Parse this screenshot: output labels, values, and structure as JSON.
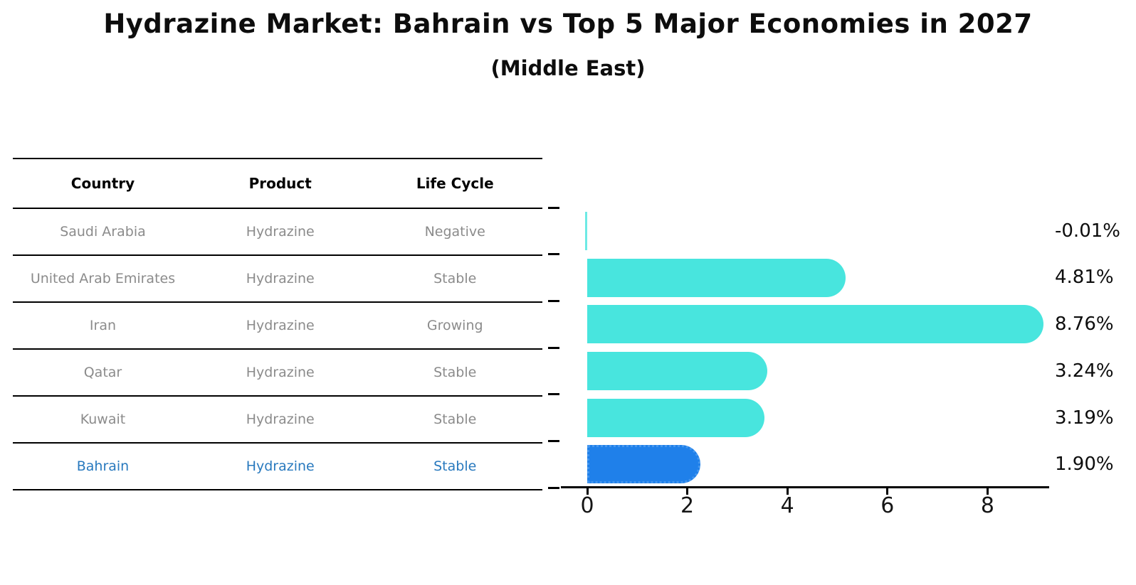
{
  "title": "Hydrazine Market: Bahrain vs Top 5 Major Economies in 2027",
  "subtitle": "(Middle East)",
  "table": {
    "headers": {
      "country": "Country",
      "product": "Product",
      "life_cycle": "Life Cycle"
    },
    "rows": [
      {
        "country": "Saudi Arabia",
        "product": "Hydrazine",
        "life_cycle": "Negative",
        "highlighted": false
      },
      {
        "country": "United Arab Emirates",
        "product": "Hydrazine",
        "life_cycle": "Stable",
        "highlighted": false
      },
      {
        "country": "Iran",
        "product": "Hydrazine",
        "life_cycle": "Growing",
        "highlighted": false
      },
      {
        "country": "Qatar",
        "product": "Hydrazine",
        "life_cycle": "Stable",
        "highlighted": false
      },
      {
        "country": "Kuwait",
        "product": "Hydrazine",
        "life_cycle": "Stable",
        "highlighted": false
      },
      {
        "country": "Bahrain",
        "product": "Hydrazine",
        "life_cycle": "Stable",
        "highlighted": true
      }
    ]
  },
  "chart_data": {
    "type": "bar",
    "orientation": "horizontal",
    "title": "Hydrazine Market: Bahrain vs Top 5 Major Economies in 2027 (Middle East)",
    "categories": [
      "Saudi Arabia",
      "United Arab Emirates",
      "Iran",
      "Qatar",
      "Kuwait",
      "Bahrain"
    ],
    "values": [
      -0.01,
      4.81,
      8.76,
      3.24,
      3.19,
      1.9
    ],
    "value_labels": [
      "-0.01%",
      "4.81%",
      "8.76%",
      "3.24%",
      "3.19%",
      "1.90%"
    ],
    "xticks": [
      0,
      2,
      4,
      6,
      8
    ],
    "xlim": [
      -0.55,
      9.2
    ],
    "grid": false,
    "legend": "none",
    "bar_color": "#48E5DE",
    "highlight_bar_color": "#1F80EA",
    "highlight_bar_border": "#4597EF",
    "highlight_index": 5,
    "value_label_color": "#0d0d0d"
  },
  "colors": {
    "table_text": "#8b8b8b",
    "header_text": "#000000",
    "highlight_text": "#2879be",
    "background": "#ffffff"
  }
}
